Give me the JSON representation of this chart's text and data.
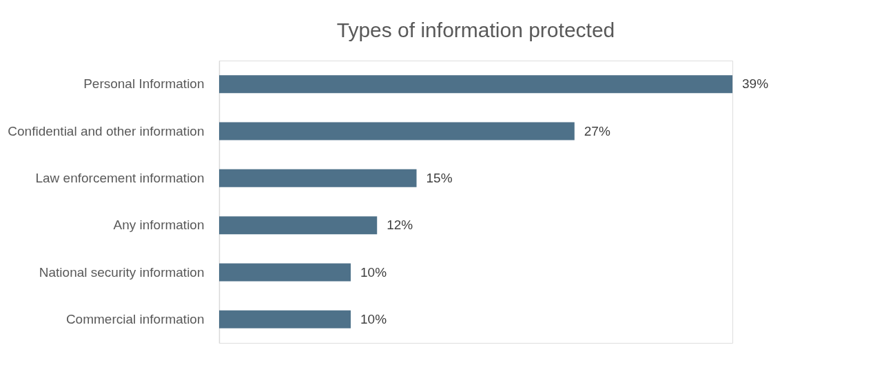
{
  "chart_data": {
    "type": "bar",
    "orientation": "horizontal",
    "title": "Types of information protected",
    "categories": [
      "Personal Information",
      "Confidential and other information",
      "Law enforcement information",
      "Any information",
      "National security information",
      "Commercial information"
    ],
    "values": [
      39,
      27,
      15,
      12,
      10,
      10
    ],
    "value_labels": [
      "39%",
      "27%",
      "15%",
      "12%",
      "10%",
      "10%"
    ],
    "color": "#4e7189"
  }
}
